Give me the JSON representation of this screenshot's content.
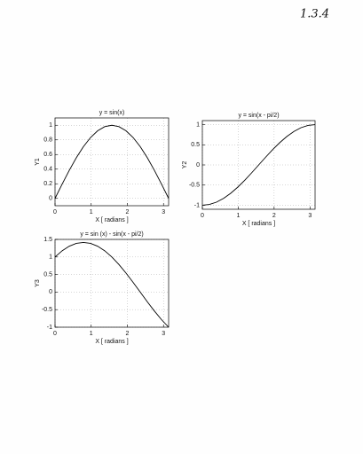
{
  "page_label": "1.3.4",
  "chart_data": [
    {
      "type": "line",
      "title": "y = sin(x)",
      "xlabel": "X [ radians ]",
      "ylabel": "Y1",
      "color": "#000000",
      "grid": true,
      "x": [
        0,
        0.1963,
        0.3927,
        0.589,
        0.7854,
        0.9817,
        1.1781,
        1.3744,
        1.5708,
        1.7671,
        1.9635,
        2.1598,
        2.3562,
        2.5525,
        2.7489,
        2.9452,
        3.1416
      ],
      "values": [
        0,
        0.1951,
        0.3827,
        0.5556,
        0.7071,
        0.8315,
        0.9239,
        0.9808,
        1,
        0.9808,
        0.9239,
        0.8315,
        0.7071,
        0.5556,
        0.3827,
        0.1951,
        0
      ],
      "xlim": [
        0,
        3.1416
      ],
      "xticks": [
        0,
        1,
        2,
        3
      ],
      "ylim": [
        -0.1,
        1.1
      ],
      "yticks": [
        0,
        0.2,
        0.4,
        0.6,
        0.8,
        1
      ]
    },
    {
      "type": "line",
      "title": "y = sin(x - pi/2)",
      "xlabel": "X [ radians ]",
      "ylabel": "Y2",
      "color": "#000000",
      "grid": true,
      "x": [
        0,
        0.1963,
        0.3927,
        0.589,
        0.7854,
        0.9817,
        1.1781,
        1.3744,
        1.5708,
        1.7671,
        1.9635,
        2.1598,
        2.3562,
        2.5525,
        2.7489,
        2.9452,
        3.1416
      ],
      "values": [
        -1,
        -0.9808,
        -0.9239,
        -0.8315,
        -0.7071,
        -0.5556,
        -0.3827,
        -0.1951,
        0,
        0.1951,
        0.3827,
        0.5556,
        0.7071,
        0.8315,
        0.9239,
        0.9808,
        1
      ],
      "xlim": [
        0,
        3.1416
      ],
      "xticks": [
        0,
        1,
        2,
        3
      ],
      "ylim": [
        -1.1,
        1.1
      ],
      "yticks": [
        -1,
        -0.5,
        0,
        0.5,
        1
      ]
    },
    {
      "type": "line",
      "title": "y = sin (x) - sin(x - pi/2)",
      "xlabel": "X [ radians ]",
      "ylabel": "Y3",
      "color": "#000000",
      "grid": true,
      "x": [
        0,
        0.1963,
        0.3927,
        0.589,
        0.7854,
        0.9817,
        1.1781,
        1.3744,
        1.5708,
        1.7671,
        1.9635,
        2.1598,
        2.3562,
        2.5525,
        2.7489,
        2.9452,
        3.1416
      ],
      "values": [
        1,
        1.1759,
        1.3066,
        1.3871,
        1.4142,
        1.3871,
        1.3066,
        1.1759,
        1,
        0.7857,
        0.5412,
        0.2759,
        0,
        -0.2759,
        -0.5412,
        -0.7857,
        -1
      ],
      "xlim": [
        0,
        3.1416
      ],
      "xticks": [
        0,
        1,
        2,
        3
      ],
      "ylim": [
        -1,
        1.5
      ],
      "yticks": [
        -1,
        -0.5,
        0,
        0.5,
        1,
        1.5
      ]
    }
  ]
}
